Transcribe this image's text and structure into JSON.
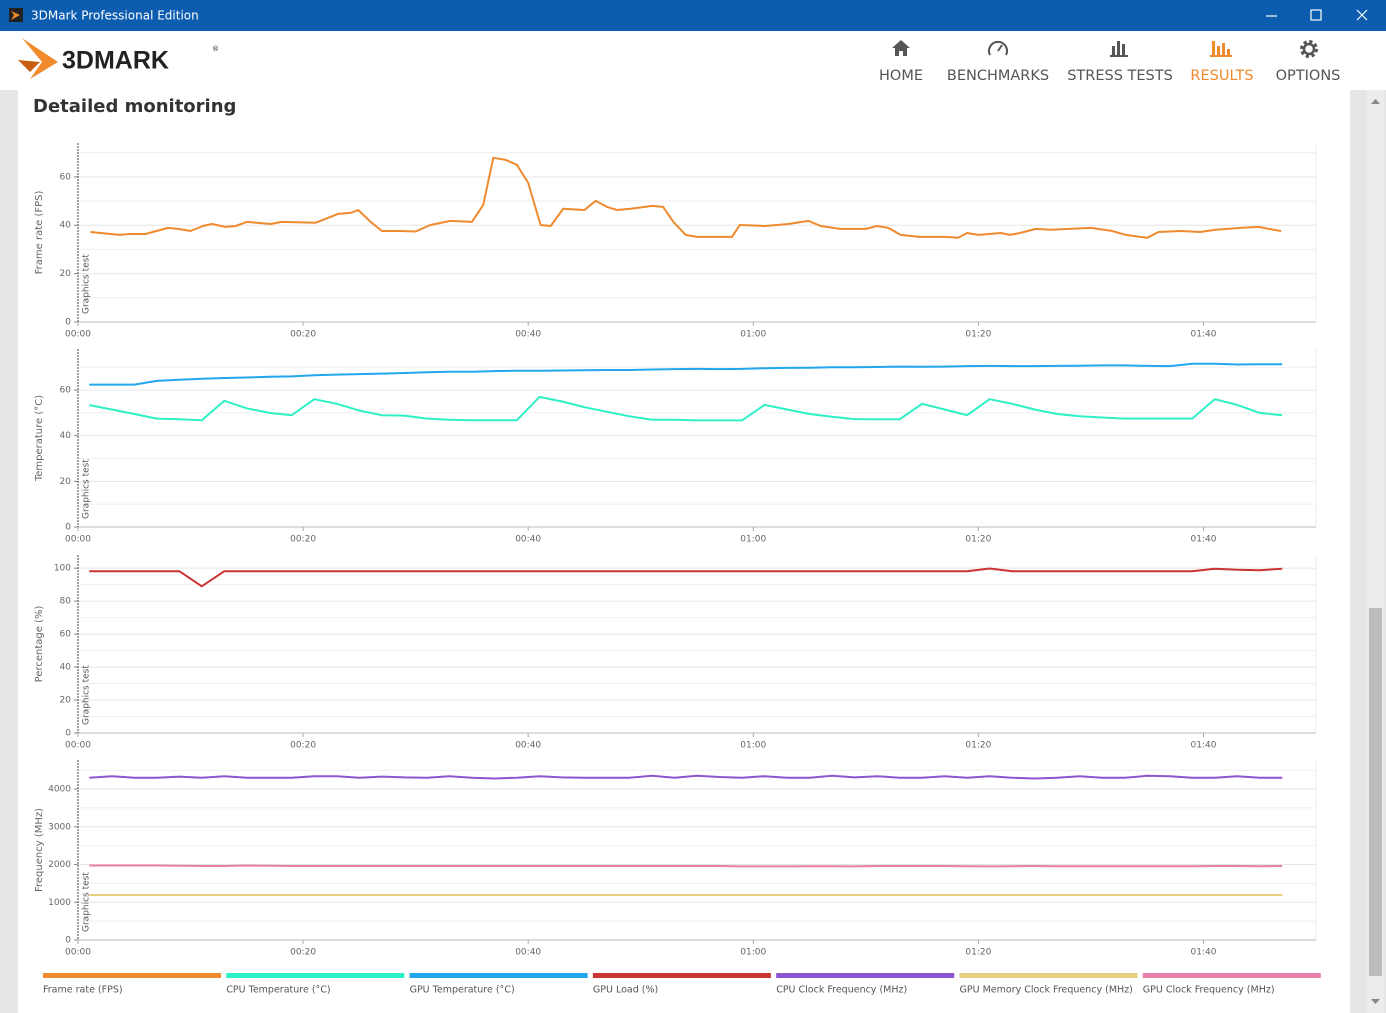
{
  "window": {
    "title": "3DMark Professional Edition"
  },
  "brand": "3DMARK",
  "brand_mark": "®",
  "nav": [
    {
      "label": "HOME"
    },
    {
      "label": "BENCHMARKS"
    },
    {
      "label": "STRESS TESTS"
    },
    {
      "label": "RESULTS",
      "active": true
    },
    {
      "label": "OPTIONS"
    }
  ],
  "heading": "Detailed monitoring",
  "chart_data": [
    {
      "type": "line",
      "ylabel": "Frame rate (FPS)",
      "annotation": "Graphics test",
      "x": [
        1.1,
        2.0,
        3.7,
        4.6,
        6.0,
        8.0,
        8.9,
        10.0,
        11.1,
        11.9,
        13.1,
        14.0,
        15.0,
        17.1,
        18.1,
        21.1,
        23.1,
        24.2,
        24.9,
        26.0,
        27.0,
        28.6,
        30.0,
        31.3,
        33.1,
        35.0,
        36.0,
        36.9,
        38.0,
        39.0,
        40.0,
        41.1,
        42.0,
        43.1,
        45.0,
        46.0,
        47.0,
        47.9,
        49.1,
        51.0,
        52.0,
        52.9,
        54.0,
        55.0,
        57.1,
        58.1,
        58.8,
        61.1,
        63.1,
        64.9,
        66.0,
        67.7,
        70.0,
        71.0,
        72.0,
        73.1,
        74.8,
        77.1,
        78.2,
        79.0,
        80.0,
        82.0,
        82.8,
        83.7,
        85.1,
        86.4,
        90.0,
        91.9,
        93.1,
        95.0,
        96.0,
        98.0,
        99.7,
        101.1,
        103.3,
        104.9,
        105.8,
        106.9
      ],
      "xlim": [
        0,
        110
      ],
      "xticks": [
        {
          "value": 0,
          "label": "00:00"
        },
        {
          "value": 20,
          "label": "00:20"
        },
        {
          "value": 40,
          "label": "00:40"
        },
        {
          "value": 60,
          "label": "01:00"
        },
        {
          "value": 80,
          "label": "01:20"
        },
        {
          "value": 100,
          "label": "01:40"
        }
      ],
      "ylim": [
        0,
        74
      ],
      "yticks": [
        0,
        20,
        40,
        60
      ],
      "yminorticks": [
        10,
        30,
        50,
        70
      ],
      "grid": true,
      "series": [
        {
          "name": "Frame rate (FPS)",
          "color": "#ef8a2e",
          "values": [
            37.2,
            36.8,
            36.0,
            36.4,
            36.4,
            38.9,
            38.5,
            37.6,
            39.7,
            40.5,
            39.3,
            39.7,
            41.4,
            40.5,
            41.4,
            41.0,
            44.7,
            45.1,
            46.3,
            41.4,
            37.6,
            37.6,
            37.4,
            40.1,
            41.8,
            41.4,
            48.4,
            67.9,
            67.0,
            65.0,
            57.5,
            40.1,
            39.7,
            46.8,
            46.3,
            50.1,
            47.6,
            46.3,
            46.8,
            48.0,
            47.6,
            41.4,
            36.0,
            35.2,
            35.2,
            35.2,
            40.1,
            39.7,
            40.5,
            41.8,
            39.7,
            38.5,
            38.5,
            39.7,
            38.9,
            36.0,
            35.2,
            35.2,
            34.8,
            36.8,
            36.0,
            36.8,
            36.0,
            36.8,
            38.5,
            38.1,
            38.9,
            37.6,
            36.0,
            34.8,
            37.2,
            37.6,
            37.2,
            38.1,
            38.9,
            39.3,
            38.5,
            37.6
          ]
        }
      ]
    },
    {
      "type": "line",
      "ylabel": "Temperature (°C)",
      "annotation": "Graphics test",
      "x": [
        1,
        3,
        5,
        7,
        9,
        11,
        13,
        15,
        17,
        19,
        21,
        23,
        25,
        27,
        29,
        31,
        33,
        35,
        37,
        39,
        41,
        43,
        45,
        47,
        49,
        51,
        53,
        55,
        57,
        59,
        61,
        63,
        65,
        67,
        69,
        71,
        73,
        75,
        77,
        79,
        81,
        83,
        85,
        87,
        89,
        91,
        93,
        95,
        97,
        99,
        101,
        103,
        105,
        107
      ],
      "xlim": [
        0,
        110
      ],
      "xticks": [
        {
          "value": 0,
          "label": "00:00"
        },
        {
          "value": 20,
          "label": "00:20"
        },
        {
          "value": 40,
          "label": "00:40"
        },
        {
          "value": 60,
          "label": "01:00"
        },
        {
          "value": 80,
          "label": "01:20"
        },
        {
          "value": 100,
          "label": "01:40"
        }
      ],
      "ylim": [
        0,
        78
      ],
      "yticks": [
        0,
        20,
        40,
        60
      ],
      "yminorticks": [
        10,
        30,
        50,
        70
      ],
      "grid": true,
      "series": [
        {
          "name": "CPU Temperature (°C)",
          "color": "#2ef0c6",
          "values": [
            53.4,
            51.5,
            49.5,
            47.5,
            47.2,
            46.8,
            55.3,
            52,
            50,
            49,
            56,
            54,
            51,
            49,
            48.8,
            47.5,
            47,
            46.8,
            46.8,
            46.8,
            57,
            55,
            52.5,
            50.5,
            48.5,
            47,
            47,
            46.7,
            46.7,
            46.7,
            53.5,
            51.5,
            49.5,
            48.3,
            47.3,
            47.2,
            47.2,
            54,
            51.5,
            49,
            56,
            54,
            51.5,
            49.5,
            48.5,
            48,
            47.5,
            47.5,
            47.5,
            47.5,
            56,
            53.5,
            50,
            49
          ]
        },
        {
          "name": "GPU Temperature (°C)",
          "color": "#22a6ee",
          "values": [
            62.4,
            62.4,
            62.4,
            64.0,
            64.5,
            65.0,
            65.3,
            65.5,
            65.8,
            66.0,
            66.5,
            66.8,
            67.0,
            67.2,
            67.5,
            67.8,
            68.0,
            68.0,
            68.3,
            68.5,
            68.5,
            68.6,
            68.7,
            68.8,
            68.8,
            69.0,
            69.2,
            69.3,
            69.2,
            69.3,
            69.6,
            69.7,
            69.8,
            70.0,
            70.0,
            70.1,
            70.3,
            70.2,
            70.3,
            70.5,
            70.6,
            70.5,
            70.5,
            70.6,
            70.7,
            70.8,
            70.8,
            70.6,
            70.5,
            71.5,
            71.5,
            71.2,
            71.3,
            71.3
          ]
        }
      ]
    },
    {
      "type": "line",
      "ylabel": "Percentage (%)",
      "annotation": "Graphics test",
      "x": [
        1,
        3,
        5,
        7,
        9,
        11,
        13,
        15,
        17,
        19,
        21,
        23,
        25,
        27,
        29,
        31,
        33,
        35,
        37,
        39,
        41,
        43,
        45,
        47,
        49,
        51,
        53,
        55,
        57,
        59,
        61,
        63,
        65,
        67,
        69,
        71,
        73,
        75,
        77,
        79,
        81,
        83,
        85,
        87,
        89,
        91,
        93,
        95,
        97,
        99,
        101,
        103,
        105,
        107
      ],
      "xlim": [
        0,
        110
      ],
      "xticks": [
        {
          "value": 0,
          "label": "00:00"
        },
        {
          "value": 20,
          "label": "00:20"
        },
        {
          "value": 40,
          "label": "00:40"
        },
        {
          "value": 60,
          "label": "01:00"
        },
        {
          "value": 80,
          "label": "01:20"
        },
        {
          "value": 100,
          "label": "01:40"
        }
      ],
      "ylim": [
        0,
        108
      ],
      "yticks": [
        0,
        20,
        40,
        60,
        80,
        100
      ],
      "yminorticks": [
        10,
        30,
        50,
        70,
        90
      ],
      "grid": true,
      "series": [
        {
          "name": "GPU Load (%)",
          "color": "#cc3333",
          "values": [
            98.2,
            98.2,
            98.2,
            98.2,
            98.2,
            89,
            98.2,
            98.2,
            98.2,
            98.2,
            98.2,
            98.2,
            98.2,
            98.2,
            98.2,
            98.2,
            98.2,
            98.2,
            98.2,
            98.2,
            98.2,
            98.2,
            98.2,
            98.2,
            98.2,
            98.2,
            98.2,
            98.2,
            98.2,
            98.2,
            98.2,
            98.2,
            98.2,
            98.2,
            98.2,
            98.2,
            98.2,
            98.2,
            98.2,
            98.2,
            99.8,
            98.2,
            98.2,
            98.2,
            98.2,
            98.2,
            98.2,
            98.2,
            98.2,
            98.2,
            99.6,
            99.0,
            98.8,
            99.6
          ]
        }
      ]
    },
    {
      "type": "line",
      "ylabel": "Frequency (MHz)",
      "annotation": "Graphics test",
      "x": [
        1,
        3,
        5,
        7,
        9,
        11,
        13,
        15,
        17,
        19,
        21,
        23,
        25,
        27,
        29,
        31,
        33,
        35,
        37,
        39,
        41,
        43,
        45,
        47,
        49,
        51,
        53,
        55,
        57,
        59,
        61,
        63,
        65,
        67,
        69,
        71,
        73,
        75,
        77,
        79,
        81,
        83,
        85,
        87,
        89,
        91,
        93,
        95,
        97,
        99,
        101,
        103,
        105,
        107
      ],
      "xlim": [
        0,
        110
      ],
      "xticks": [
        {
          "value": 0,
          "label": "00:00"
        },
        {
          "value": 20,
          "label": "00:20"
        },
        {
          "value": 40,
          "label": "00:40"
        },
        {
          "value": 60,
          "label": "01:00"
        },
        {
          "value": 80,
          "label": "01:20"
        },
        {
          "value": 100,
          "label": "01:40"
        }
      ],
      "ylim": [
        0,
        4770
      ],
      "yticks": [
        0,
        1000,
        2000,
        3000,
        4000
      ],
      "yminorticks": [
        500,
        1500,
        2500,
        3500,
        4500
      ],
      "grid": true,
      "series": [
        {
          "name": "CPU Clock Frequency (MHz)",
          "color": "#8e55d0",
          "values": [
            4300,
            4340,
            4300,
            4300,
            4330,
            4300,
            4340,
            4300,
            4300,
            4300,
            4340,
            4340,
            4300,
            4330,
            4310,
            4300,
            4340,
            4300,
            4280,
            4300,
            4340,
            4310,
            4300,
            4300,
            4300,
            4350,
            4300,
            4350,
            4320,
            4300,
            4340,
            4300,
            4300,
            4350,
            4310,
            4340,
            4300,
            4300,
            4340,
            4300,
            4340,
            4300,
            4280,
            4300,
            4340,
            4300,
            4300,
            4350,
            4340,
            4300,
            4300,
            4340,
            4300,
            4300
          ]
        },
        {
          "name": "GPU Memory Clock Frequency (MHz)",
          "color": "#e6cd7f",
          "values": [
            1192,
            1192,
            1192,
            1192,
            1192,
            1192,
            1192,
            1192,
            1192,
            1192,
            1192,
            1192,
            1192,
            1192,
            1192,
            1192,
            1192,
            1192,
            1192,
            1192,
            1192,
            1192,
            1192,
            1192,
            1192,
            1192,
            1192,
            1192,
            1192,
            1192,
            1192,
            1192,
            1192,
            1192,
            1192,
            1192,
            1192,
            1192,
            1192,
            1192,
            1192,
            1192,
            1192,
            1192,
            1192,
            1192,
            1192,
            1192,
            1192,
            1192,
            1192,
            1192,
            1192,
            1192
          ]
        },
        {
          "name": "GPU Clock Frequency (MHz)",
          "color": "#e87fa8",
          "values": [
            1975,
            1975,
            1975,
            1975,
            1970,
            1960,
            1960,
            1975,
            1965,
            1960,
            1960,
            1960,
            1960,
            1960,
            1960,
            1960,
            1960,
            1960,
            1960,
            1960,
            1960,
            1960,
            1960,
            1960,
            1960,
            1960,
            1960,
            1960,
            1960,
            1950,
            1950,
            1950,
            1955,
            1955,
            1950,
            1960,
            1960,
            1960,
            1960,
            1955,
            1950,
            1955,
            1960,
            1955,
            1955,
            1955,
            1955,
            1955,
            1955,
            1955,
            1960,
            1960,
            1955,
            1960
          ]
        }
      ]
    }
  ]
}
